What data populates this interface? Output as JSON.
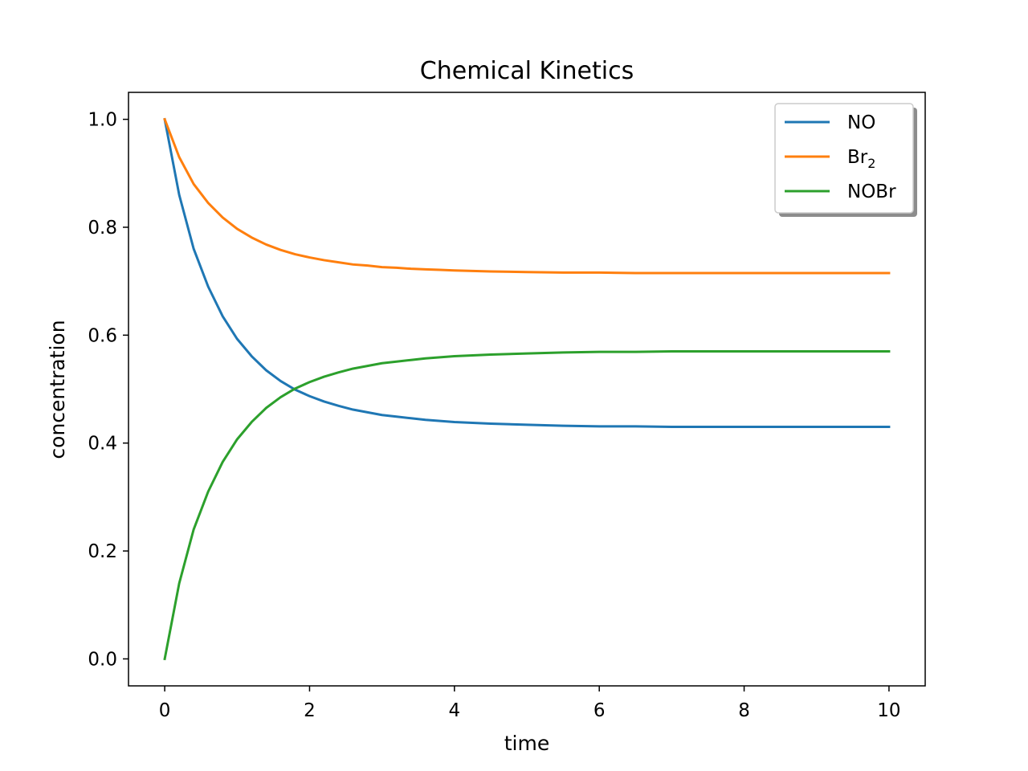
{
  "chart_data": {
    "type": "line",
    "title": "Chemical Kinetics",
    "xlabel": "time",
    "ylabel": "concentration",
    "xlim": [
      -0.5,
      10.5
    ],
    "ylim": [
      -0.05,
      1.05
    ],
    "x_ticks": [
      0,
      2,
      4,
      6,
      8,
      10
    ],
    "y_ticks": [
      0.0,
      0.2,
      0.4,
      0.6,
      0.8,
      1.0
    ],
    "x_tick_labels": [
      "0",
      "2",
      "4",
      "6",
      "8",
      "10"
    ],
    "y_tick_labels": [
      "0.0",
      "0.2",
      "0.4",
      "0.6",
      "0.8",
      "1.0"
    ],
    "grid": false,
    "legend_position": "upper right",
    "x": [
      0,
      0.2,
      0.4,
      0.6,
      0.8,
      1.0,
      1.2,
      1.4,
      1.6,
      1.8,
      2.0,
      2.2,
      2.4,
      2.6,
      2.8,
      3.0,
      3.2,
      3.4,
      3.6,
      3.8,
      4.0,
      4.5,
      5.0,
      5.5,
      6.0,
      6.5,
      7.0,
      7.5,
      8.0,
      8.5,
      9.0,
      9.5,
      10.0
    ],
    "series": [
      {
        "name": "NO",
        "color": "#1f77b4",
        "values": [
          1.0,
          0.86,
          0.76,
          0.69,
          0.635,
          0.593,
          0.561,
          0.535,
          0.515,
          0.499,
          0.487,
          0.477,
          0.469,
          0.462,
          0.457,
          0.452,
          0.449,
          0.446,
          0.443,
          0.441,
          0.439,
          0.436,
          0.434,
          0.432,
          0.431,
          0.431,
          0.43,
          0.43,
          0.43,
          0.43,
          0.43,
          0.43,
          0.43
        ]
      },
      {
        "name": "Br",
        "name_subscript": "2",
        "color": "#ff7f0e",
        "values": [
          1.0,
          0.93,
          0.88,
          0.845,
          0.818,
          0.797,
          0.781,
          0.768,
          0.758,
          0.75,
          0.744,
          0.739,
          0.735,
          0.731,
          0.729,
          0.726,
          0.725,
          0.723,
          0.722,
          0.721,
          0.72,
          0.718,
          0.717,
          0.716,
          0.716,
          0.715,
          0.715,
          0.715,
          0.715,
          0.715,
          0.715,
          0.715,
          0.715
        ]
      },
      {
        "name": "NOBr",
        "color": "#2ca02c",
        "values": [
          0.0,
          0.14,
          0.24,
          0.31,
          0.365,
          0.407,
          0.439,
          0.465,
          0.485,
          0.501,
          0.513,
          0.523,
          0.531,
          0.538,
          0.543,
          0.548,
          0.551,
          0.554,
          0.557,
          0.559,
          0.561,
          0.564,
          0.566,
          0.568,
          0.569,
          0.569,
          0.57,
          0.57,
          0.57,
          0.57,
          0.57,
          0.57,
          0.57
        ]
      }
    ]
  }
}
